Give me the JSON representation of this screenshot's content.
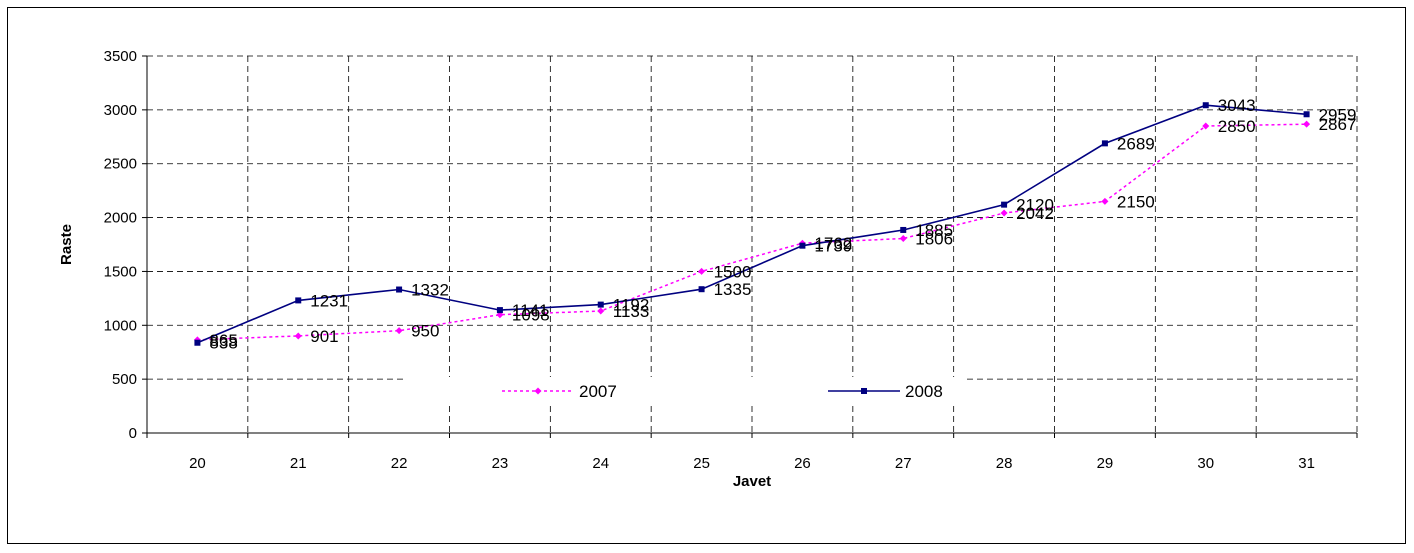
{
  "chart_data": {
    "type": "line",
    "categories": [
      "20",
      "21",
      "22",
      "23",
      "24",
      "25",
      "26",
      "27",
      "28",
      "29",
      "30",
      "31"
    ],
    "series": [
      {
        "name": "2007",
        "values": [
          865,
          901,
          950,
          1098,
          1133,
          1500,
          1762,
          1806,
          2042,
          2150,
          2850,
          2867
        ],
        "color": "#ff00ff",
        "line_style": "dotted",
        "marker": "diamond"
      },
      {
        "name": "2008",
        "values": [
          838,
          1231,
          1332,
          1141,
          1192,
          1335,
          1739,
          1885,
          2120,
          2689,
          3043,
          2959
        ],
        "color": "#000080",
        "line_style": "solid",
        "marker": "square"
      }
    ],
    "xlabel": "Javet",
    "ylabel": "Raste",
    "ylim": [
      0,
      3500
    ],
    "yticks": [
      0,
      500,
      1000,
      1500,
      2000,
      2500,
      3000,
      3500
    ],
    "grid": true,
    "legend_position": "inside-bottom"
  }
}
